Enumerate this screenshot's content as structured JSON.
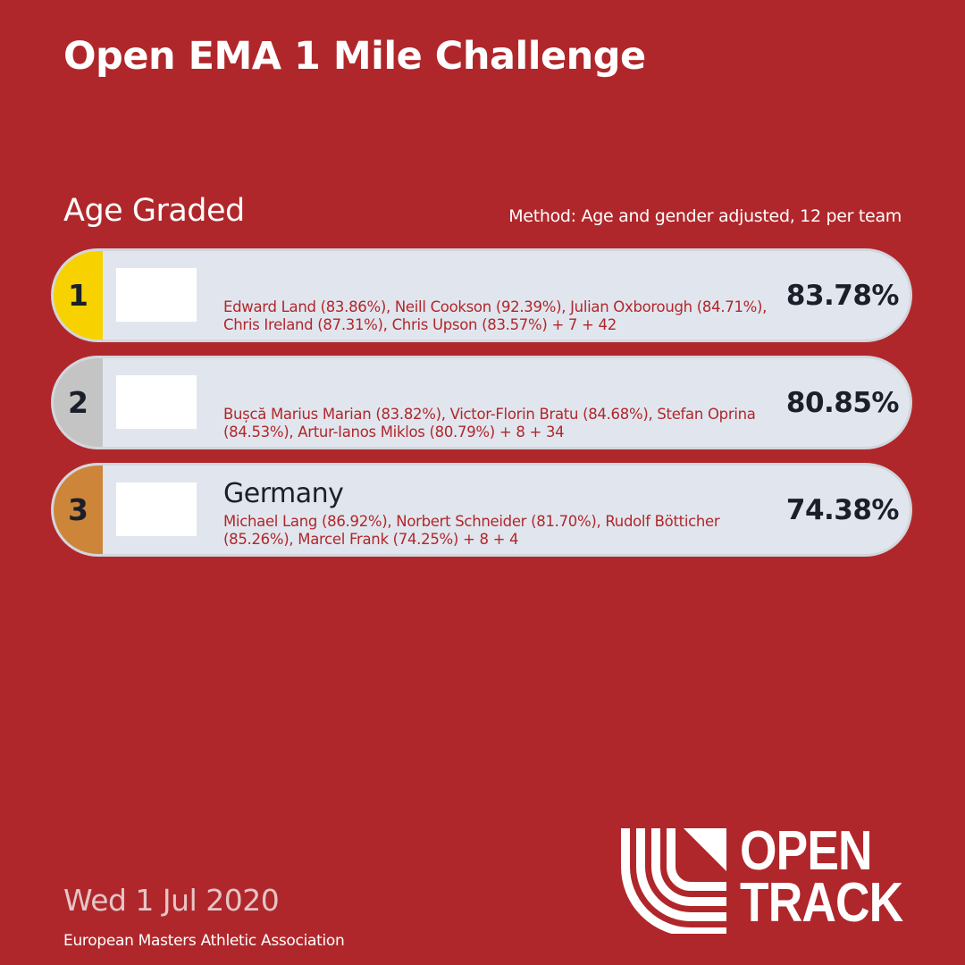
{
  "header": {
    "title": "Open EMA 1 Mile Challenge",
    "subtitle": "Age Graded",
    "method": "Method: Age and gender adjusted, 12 per team"
  },
  "results": [
    {
      "rank": "1",
      "team": "",
      "members": "Edward Land (83.86%), Neill Cookson (92.39%), Julian Oxborough (84.71%), Chris Ireland (87.31%), Chris Upson (83.57%) + 7 + 42",
      "score": "83.78%",
      "medal_color": "#F7D100"
    },
    {
      "rank": "2",
      "team": "",
      "members": "Bușcă Marius Marian (83.82%), Victor-Florin Bratu (84.68%), Stefan Oprina (84.53%), Artur-Ianos Miklos (80.79%) + 8 + 34",
      "score": "80.85%",
      "medal_color": "#C4C4C4"
    },
    {
      "rank": "3",
      "team": "Germany",
      "members": "Michael Lang (86.92%), Norbert Schneider (81.70%), Rudolf Bötticher (85.26%), Marcel Frank (74.25%) + 8 + 4",
      "score": "74.38%",
      "medal_color": "#CD853A"
    }
  ],
  "footer": {
    "date": "Wed 1 Jul 2020",
    "organization": "European Masters Athletic Association"
  },
  "brand": {
    "line1": "OPEN",
    "line2": "TRACK"
  },
  "colors": {
    "background": "#B0272B",
    "row_background": "#E1E6EE",
    "member_text": "#B0272B"
  }
}
